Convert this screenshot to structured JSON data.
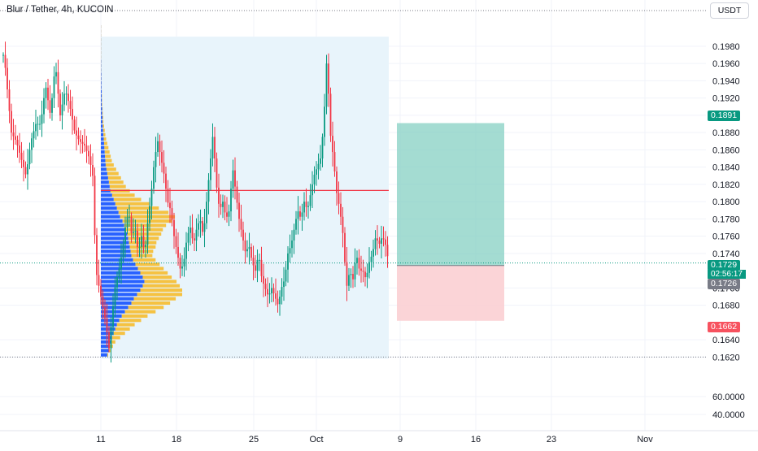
{
  "header": {
    "symbol_title": "Blur / Tether, 4h, KUCOIN",
    "currency_button": "USDT"
  },
  "colors": {
    "up": "#089981",
    "down": "#f23645",
    "vp_up": "#2962ff",
    "vp_down": "#f5c242",
    "poc": "#f23645",
    "vp_bg": "#e8f4fb",
    "profit_zone": "#7ecdbf",
    "loss_zone": "#fbcfd3",
    "grid": "#f0f3fa",
    "axis_text": "#131722"
  },
  "price_scale": {
    "labels": [
      "0.1980",
      "0.1960",
      "0.1940",
      "0.1920",
      "0.1900",
      "0.1880",
      "0.1860",
      "0.1840",
      "0.1820",
      "0.1800",
      "0.1780",
      "0.1760",
      "0.1740",
      "0.1700",
      "0.1680",
      "0.1640",
      "0.1620"
    ],
    "current_price": "0.1729",
    "countdown": "02:56:17",
    "position_entry": "0.1726",
    "take_profit": "0.1891",
    "stop_loss": "0.1662"
  },
  "volume_scale": {
    "labels": [
      "60.0000",
      "40.0000"
    ]
  },
  "time_axis": {
    "labels": [
      "11",
      "18",
      "25",
      "Oct",
      "9",
      "16",
      "23",
      "Nov"
    ]
  },
  "chart_data": {
    "type": "candlestick",
    "symbol": "Blur / Tether",
    "interval": "4h",
    "exchange": "KUCOIN",
    "ylim": [
      0.161,
      0.1995
    ],
    "position": {
      "side": "long",
      "entry": 0.1726,
      "take_profit": 0.1891,
      "stop_loss": 0.1662
    },
    "poc_price": 0.1813,
    "current_price": 0.1729,
    "range_high": 0.1993,
    "range_low": 0.162,
    "path_start": 4,
    "path": [
      [
        0,
        0.199
      ],
      [
        6,
        0.196
      ],
      [
        14,
        0.188
      ],
      [
        20,
        0.187
      ],
      [
        26,
        0.185
      ],
      [
        32,
        0.183
      ],
      [
        38,
        0.187
      ],
      [
        44,
        0.189
      ],
      [
        50,
        0.189
      ],
      [
        56,
        0.1935
      ],
      [
        62,
        0.19
      ],
      [
        68,
        0.196
      ],
      [
        74,
        0.19
      ],
      [
        80,
        0.193
      ],
      [
        86,
        0.191
      ],
      [
        92,
        0.188
      ],
      [
        98,
        0.187
      ],
      [
        104,
        0.1865
      ],
      [
        110,
        0.185
      ],
      [
        114,
        0.183
      ],
      [
        118,
        0.172
      ],
      [
        124,
        0.169
      ],
      [
        130,
        0.166
      ],
      [
        134,
        0.163
      ],
      [
        138,
        0.167
      ],
      [
        142,
        0.1705
      ],
      [
        146,
        0.172
      ],
      [
        150,
        0.174
      ],
      [
        154,
        0.177
      ],
      [
        158,
        0.179
      ],
      [
        162,
        0.176
      ],
      [
        166,
        0.177
      ],
      [
        170,
        0.174
      ],
      [
        174,
        0.176
      ],
      [
        178,
        0.174
      ],
      [
        182,
        0.178
      ],
      [
        186,
        0.181
      ],
      [
        190,
        0.185
      ],
      [
        194,
        0.187
      ],
      [
        198,
        0.185
      ],
      [
        202,
        0.183
      ],
      [
        206,
        0.18
      ],
      [
        210,
        0.179
      ],
      [
        214,
        0.176
      ],
      [
        218,
        0.174
      ],
      [
        222,
        0.172
      ],
      [
        226,
        0.173
      ],
      [
        230,
        0.176
      ],
      [
        234,
        0.177
      ],
      [
        238,
        0.175
      ],
      [
        242,
        0.177
      ],
      [
        246,
        0.178
      ],
      [
        250,
        0.176
      ],
      [
        254,
        0.18
      ],
      [
        258,
        0.184
      ],
      [
        262,
        0.188
      ],
      [
        266,
        0.182
      ],
      [
        270,
        0.179
      ],
      [
        274,
        0.18
      ],
      [
        278,
        0.178
      ],
      [
        282,
        0.179
      ],
      [
        286,
        0.184
      ],
      [
        290,
        0.181
      ],
      [
        294,
        0.178
      ],
      [
        298,
        0.176
      ],
      [
        302,
        0.174
      ],
      [
        306,
        0.175
      ],
      [
        310,
        0.173
      ],
      [
        314,
        0.172
      ],
      [
        318,
        0.174
      ],
      [
        322,
        0.171
      ],
      [
        326,
        0.17
      ],
      [
        330,
        0.169
      ],
      [
        334,
        0.17
      ],
      [
        338,
        0.169
      ],
      [
        342,
        0.168
      ],
      [
        346,
        0.17
      ],
      [
        350,
        0.171
      ],
      [
        354,
        0.174
      ],
      [
        358,
        0.175
      ],
      [
        362,
        0.177
      ],
      [
        366,
        0.179
      ],
      [
        370,
        0.178
      ],
      [
        374,
        0.18
      ],
      [
        378,
        0.179
      ],
      [
        382,
        0.181
      ],
      [
        386,
        0.183
      ],
      [
        390,
        0.184
      ],
      [
        394,
        0.185
      ],
      [
        398,
        0.189
      ],
      [
        402,
        0.197
      ],
      [
        406,
        0.188
      ],
      [
        410,
        0.185
      ],
      [
        414,
        0.181
      ],
      [
        418,
        0.179
      ],
      [
        422,
        0.176
      ],
      [
        426,
        0.17
      ],
      [
        430,
        0.172
      ],
      [
        434,
        0.171
      ],
      [
        438,
        0.174
      ],
      [
        442,
        0.172
      ],
      [
        446,
        0.172
      ],
      [
        450,
        0.171
      ],
      [
        454,
        0.173
      ],
      [
        458,
        0.174
      ],
      [
        462,
        0.176
      ],
      [
        466,
        0.175
      ],
      [
        470,
        0.176
      ],
      [
        474,
        0.175
      ],
      [
        478,
        0.1729
      ]
    ],
    "volume_profile": {
      "price_step": 0.0005,
      "up_volume": [
        0.4,
        0.5,
        0.55,
        0.6,
        0.7,
        0.8,
        0.9,
        1.0,
        1.15,
        1.3,
        1.5,
        1.7,
        1.9,
        2.05,
        2.25,
        2.45,
        2.6,
        2.7,
        2.6,
        2.45,
        2.3,
        2.15,
        2.0,
        1.9,
        1.85,
        1.8,
        1.75,
        1.7,
        1.65,
        1.55,
        1.45,
        1.35,
        1.2,
        1.1,
        1.0,
        0.9,
        0.8,
        0.7,
        0.6,
        0.55,
        0.5,
        0.45,
        0.4,
        0.35,
        0.3,
        0.28,
        0.26,
        0.24,
        0.22,
        0.2,
        0.18,
        0.16,
        0.14,
        0.12,
        0.1,
        0.1,
        0.08,
        0.08,
        0.06,
        0.06,
        0.05,
        0.05,
        0.04,
        0.04,
        0.03,
        0.03,
        0.02,
        0.02,
        0.02,
        0.01,
        0.01,
        0.01,
        0.01,
        0.01,
        0.01,
        0.01,
        0.01
      ],
      "down_volume": [
        0.05,
        0.1,
        0.2,
        0.3,
        0.5,
        0.7,
        0.9,
        1.1,
        1.35,
        1.6,
        1.9,
        2.2,
        2.4,
        2.6,
        2.8,
        2.6,
        2.3,
        2.0,
        1.8,
        1.7,
        1.6,
        1.5,
        1.4,
        1.3,
        1.4,
        1.6,
        1.7,
        1.9,
        2.1,
        2.3,
        2.6,
        3.1,
        3.4,
        3.1,
        2.6,
        2.1,
        1.7,
        1.4,
        1.2,
        1.0,
        0.9,
        0.8,
        0.7,
        0.6,
        0.5,
        0.4,
        0.35,
        0.3,
        0.25,
        0.2,
        0.15,
        0.12,
        0.1,
        0.08,
        0.06,
        0.05,
        0.04,
        0.03,
        0.03,
        0.02,
        0.02,
        0.01,
        0.01,
        0.01,
        0.01,
        0.01,
        0.01,
        0.01,
        0.01,
        0.01,
        0.01,
        0.01,
        0.01,
        0.01,
        0.01,
        0.01,
        0.01
      ]
    }
  }
}
